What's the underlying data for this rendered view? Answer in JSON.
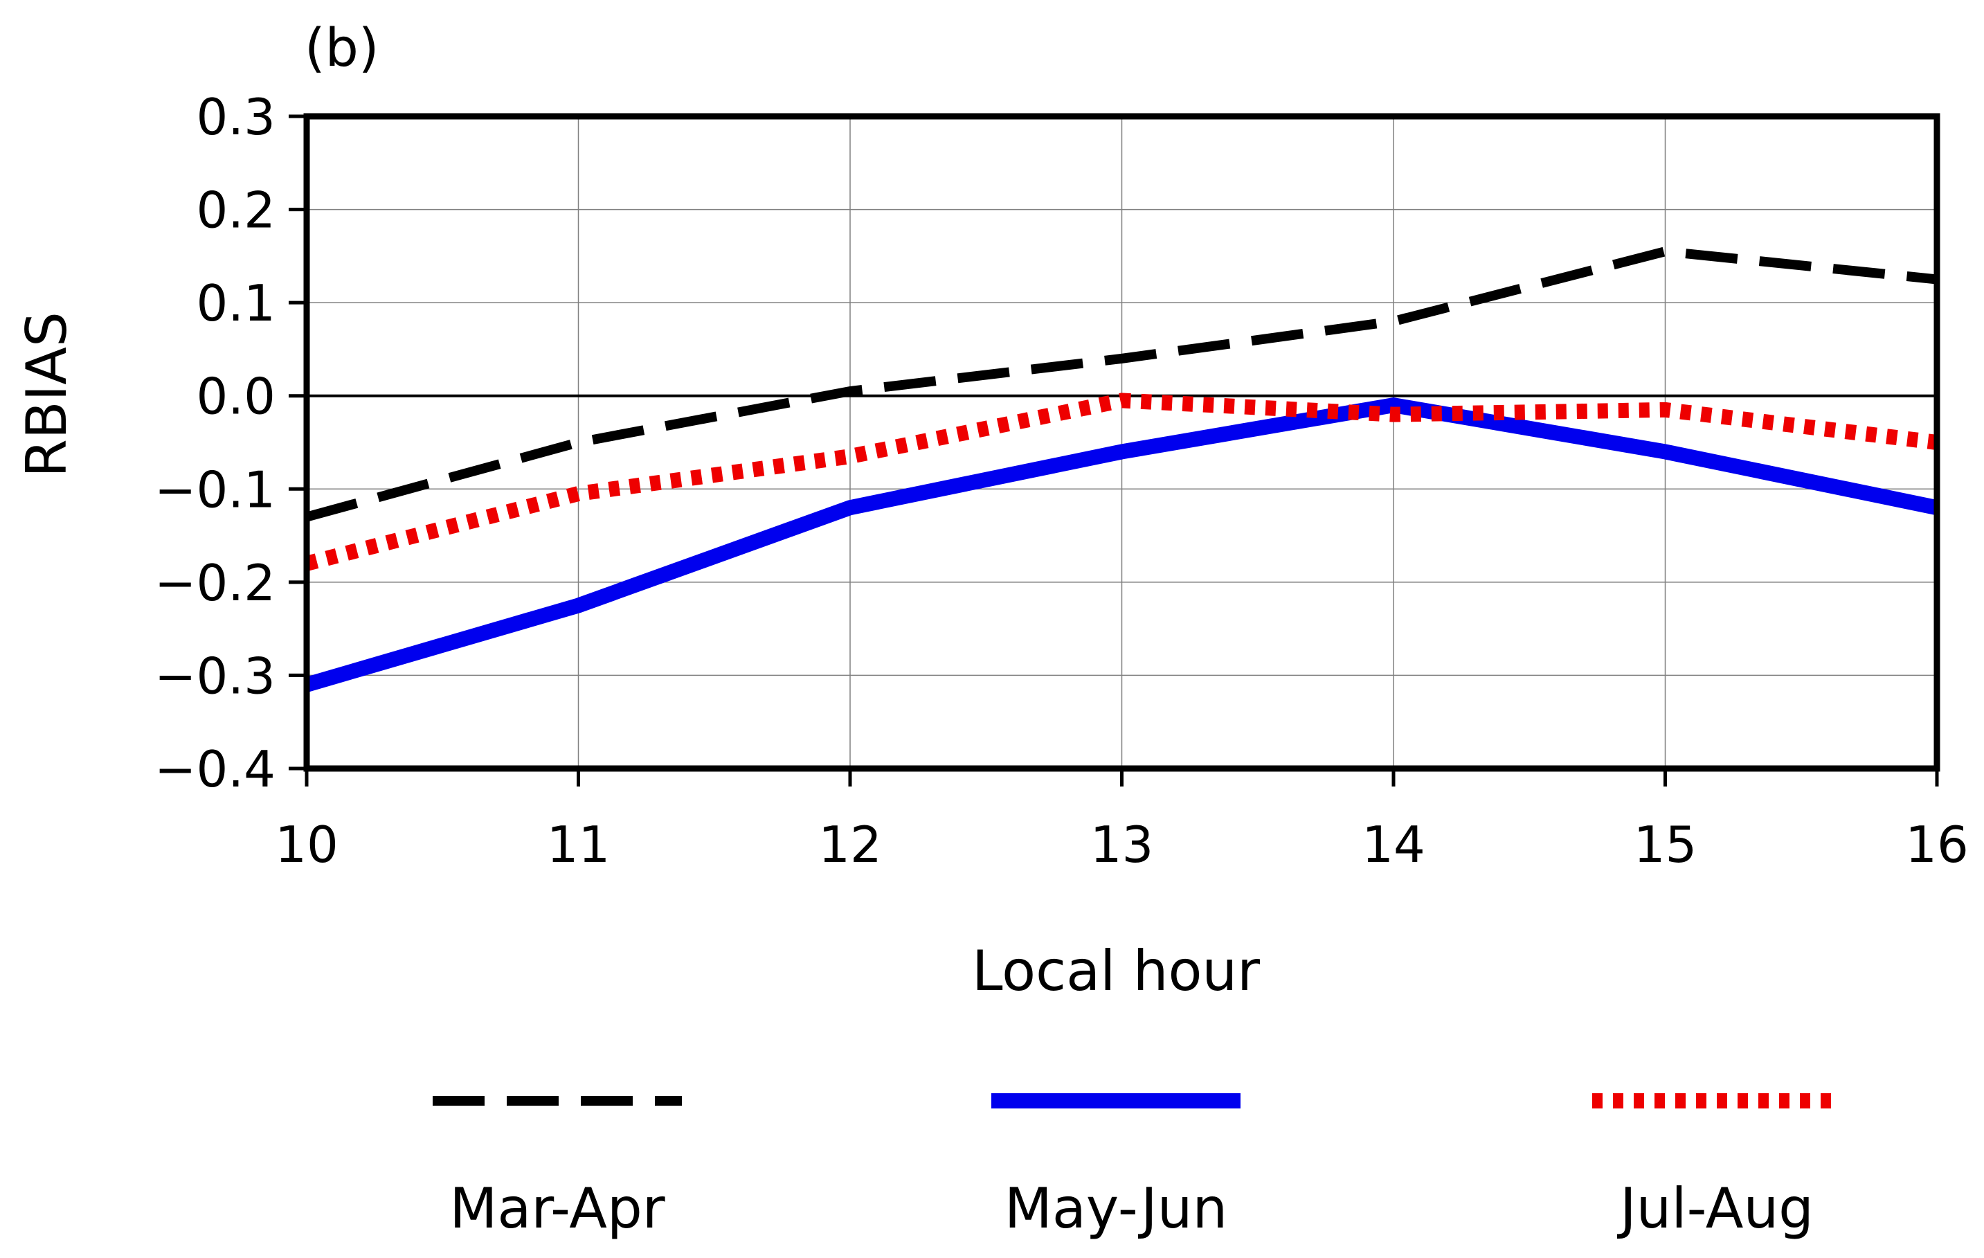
{
  "chart_data": {
    "type": "line",
    "panel_label": "(b)",
    "title": "",
    "xlabel": "Local hour",
    "ylabel": "RBIAS",
    "x": [
      10,
      11,
      12,
      13,
      14,
      15,
      16
    ],
    "xlim": [
      10,
      16
    ],
    "ylim": [
      -0.4,
      0.3
    ],
    "x_ticks": [
      "10",
      "11",
      "12",
      "13",
      "14",
      "15",
      "16"
    ],
    "y_ticks": [
      {
        "value": 0.3,
        "label": "0.3"
      },
      {
        "value": 0.2,
        "label": "0.2"
      },
      {
        "value": 0.1,
        "label": "0.1"
      },
      {
        "value": 0.0,
        "label": "0.0"
      },
      {
        "value": -0.1,
        "label": "−0.1"
      },
      {
        "value": -0.2,
        "label": "−0.2"
      },
      {
        "value": -0.3,
        "label": "−0.3"
      },
      {
        "value": -0.4,
        "label": "−0.4"
      }
    ],
    "grid": true,
    "zero_line": true,
    "legend_position": "bottom",
    "series": [
      {
        "name": "Mar-Apr",
        "values": [
          -0.13,
          -0.05,
          0.005,
          0.04,
          0.08,
          0.155,
          0.125
        ],
        "color": "#000000",
        "style": "dashed"
      },
      {
        "name": "May-Jun",
        "values": [
          -0.31,
          -0.225,
          -0.12,
          -0.06,
          -0.01,
          -0.06,
          -0.12
        ],
        "color": "#0000ee",
        "style": "solid"
      },
      {
        "name": "Jul-Aug",
        "values": [
          -0.18,
          -0.105,
          -0.065,
          -0.005,
          -0.02,
          -0.015,
          -0.05
        ],
        "color": "#ee0000",
        "style": "dotted"
      }
    ]
  }
}
